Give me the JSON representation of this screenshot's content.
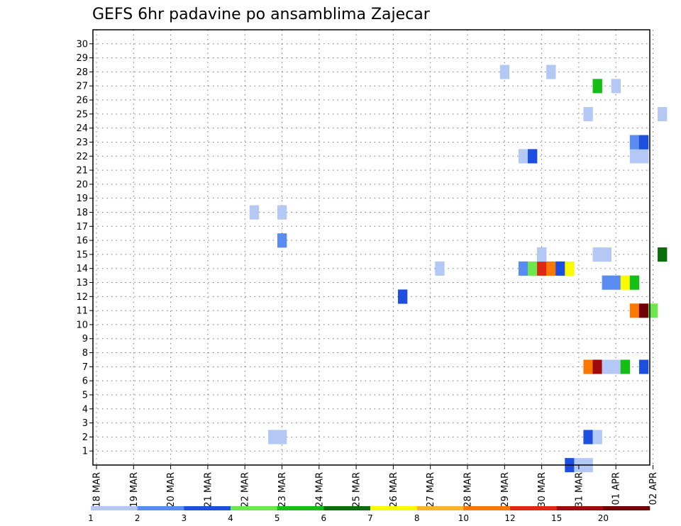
{
  "chart_data": {
    "type": "heatmap",
    "title": "GEFS 6hr padavine po ansamblima Zajecar",
    "x_labels": [
      "18 MAR",
      "19 MAR",
      "20 MAR",
      "21 MAR",
      "22 MAR",
      "23 MAR",
      "24 MAR",
      "25 MAR",
      "26 MAR",
      "27 MAR",
      "28 MAR",
      "29 MAR",
      "30 MAR",
      "31 MAR",
      "01 APR",
      "02 APR"
    ],
    "y_labels": [
      "1",
      "2",
      "3",
      "4",
      "5",
      "6",
      "7",
      "8",
      "9",
      "10",
      "11",
      "12",
      "13",
      "14",
      "15",
      "16",
      "17",
      "18",
      "19",
      "20",
      "21",
      "22",
      "23",
      "24",
      "25",
      "26",
      "27",
      "28",
      "29",
      "30"
    ],
    "x_start": "18 MAR 00Z",
    "x_step_hours": 6,
    "grid": true,
    "colorbar": {
      "labels": [
        "1",
        "2",
        "3",
        "4",
        "5",
        "6",
        "7",
        "8",
        "10",
        "12",
        "15",
        "20"
      ],
      "colors": [
        "#b4c8f5",
        "#5a8cf0",
        "#1e4ee0",
        "#6ee650",
        "#14be14",
        "#0a6e0a",
        "#fafa00",
        "#fab428",
        "#fa7800",
        "#dc2814",
        "#a00a0a",
        "#6e0000"
      ]
    },
    "cells": [
      {
        "member": 0,
        "step": 51,
        "value": 3
      },
      {
        "member": 0,
        "step": 52,
        "value": 1
      },
      {
        "member": 0,
        "step": 53,
        "value": 1
      },
      {
        "member": 2,
        "step": 19,
        "value": 1
      },
      {
        "member": 2,
        "step": 20,
        "value": 1
      },
      {
        "member": 2,
        "step": 53,
        "value": 3
      },
      {
        "member": 2,
        "step": 54,
        "value": 1
      },
      {
        "member": 7,
        "step": 53,
        "value": 10
      },
      {
        "member": 7,
        "step": 54,
        "value": 15
      },
      {
        "member": 7,
        "step": 55,
        "value": 1
      },
      {
        "member": 7,
        "step": 56,
        "value": 1
      },
      {
        "member": 7,
        "step": 57,
        "value": 5
      },
      {
        "member": 7,
        "step": 59,
        "value": 3
      },
      {
        "member": 11,
        "step": 58,
        "value": 10
      },
      {
        "member": 11,
        "step": 59,
        "value": 20
      },
      {
        "member": 11,
        "step": 60,
        "value": 4
      },
      {
        "member": 12,
        "step": 33,
        "value": 3
      },
      {
        "member": 13,
        "step": 55,
        "value": 2
      },
      {
        "member": 13,
        "step": 56,
        "value": 2
      },
      {
        "member": 13,
        "step": 57,
        "value": 7
      },
      {
        "member": 13,
        "step": 58,
        "value": 5
      },
      {
        "member": 14,
        "step": 37,
        "value": 1
      },
      {
        "member": 14,
        "step": 46,
        "value": 2
      },
      {
        "member": 14,
        "step": 47,
        "value": 4
      },
      {
        "member": 14,
        "step": 48,
        "value": 12
      },
      {
        "member": 14,
        "step": 49,
        "value": 10
      },
      {
        "member": 14,
        "step": 50,
        "value": 3
      },
      {
        "member": 14,
        "step": 51,
        "value": 7
      },
      {
        "member": 15,
        "step": 48,
        "value": 1
      },
      {
        "member": 15,
        "step": 54,
        "value": 1
      },
      {
        "member": 15,
        "step": 55,
        "value": 1
      },
      {
        "member": 15,
        "step": 61,
        "value": 6
      },
      {
        "member": 16,
        "step": 20,
        "value": 2
      },
      {
        "member": 18,
        "step": 17,
        "value": 1
      },
      {
        "member": 18,
        "step": 20,
        "value": 1
      },
      {
        "member": 22,
        "step": 46,
        "value": 1
      },
      {
        "member": 22,
        "step": 47,
        "value": 3
      },
      {
        "member": 22,
        "step": 58,
        "value": 1
      },
      {
        "member": 22,
        "step": 59,
        "value": 1
      },
      {
        "member": 23,
        "step": 58,
        "value": 2
      },
      {
        "member": 23,
        "step": 59,
        "value": 3
      },
      {
        "member": 25,
        "step": 53,
        "value": 1
      },
      {
        "member": 25,
        "step": 61,
        "value": 1
      },
      {
        "member": 27,
        "step": 54,
        "value": 5
      },
      {
        "member": 27,
        "step": 56,
        "value": 1
      },
      {
        "member": 28,
        "step": 44,
        "value": 1
      },
      {
        "member": 28,
        "step": 49,
        "value": 1
      }
    ]
  }
}
